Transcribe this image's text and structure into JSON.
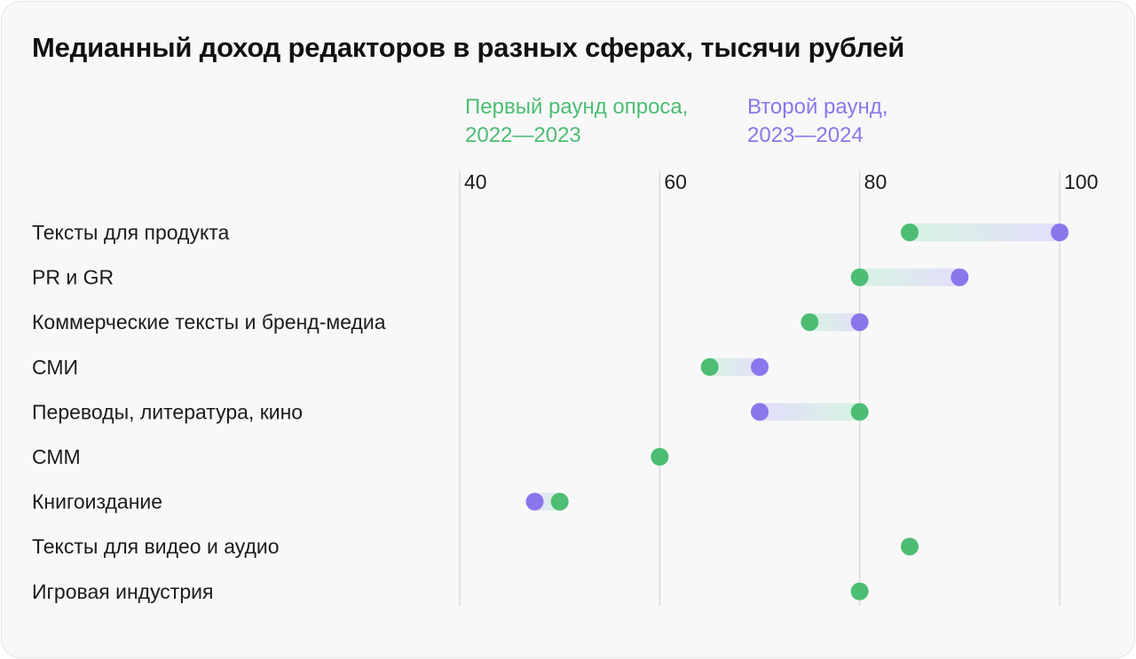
{
  "title": "Медианный доход редакторов в разных сферах, тысячи рублей",
  "legend": {
    "first": {
      "line1": "Первый раунд опроса,",
      "line2": "2022—2023"
    },
    "second": {
      "line1": "Второй раунд,",
      "line2": "2023—2024"
    }
  },
  "colors": {
    "first": "#4dbd74",
    "second": "#8b76ec",
    "grid": "#d6d6d6"
  },
  "chart_data": {
    "type": "dumbbell",
    "title": "Медианный доход редакторов в разных сферах, тысячи рублей",
    "xlim": [
      40,
      100
    ],
    "xticks": [
      40,
      60,
      80,
      100
    ],
    "grid": true,
    "legend_position": "top",
    "series": [
      {
        "name": "Первый раунд опроса, 2022—2023",
        "color": "#4dbd74"
      },
      {
        "name": "Второй раунд, 2023—2024",
        "color": "#8b76ec"
      }
    ],
    "categories": [
      {
        "label": "Тексты для продукта",
        "first": 85,
        "second": 100
      },
      {
        "label": "PR и GR",
        "first": 80,
        "second": 90
      },
      {
        "label": "Коммерческие тексты и бренд-медиа",
        "first": 75,
        "second": 80
      },
      {
        "label": "СМИ",
        "first": 65,
        "second": 70
      },
      {
        "label": "Переводы, литература, кино",
        "first": 80,
        "second": 70
      },
      {
        "label": "СММ",
        "first": 60,
        "second": null
      },
      {
        "label": "Книгоиздание",
        "first": 50,
        "second": 47.5
      },
      {
        "label": "Тексты для видео и аудио",
        "first": 85,
        "second": null
      },
      {
        "label": "Игровая индустрия",
        "first": 80,
        "second": null
      }
    ]
  }
}
